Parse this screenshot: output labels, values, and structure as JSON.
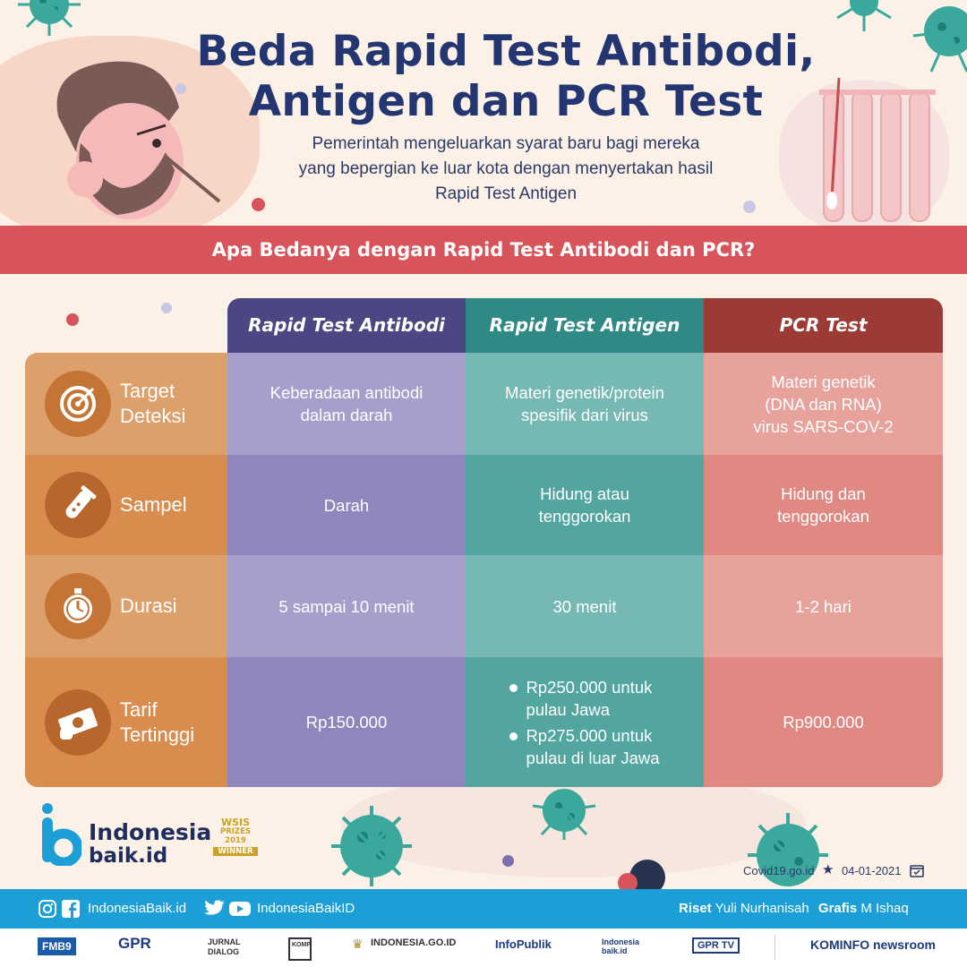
{
  "header": {
    "title_line1": "Beda Rapid Test Antibodi,",
    "title_line2": "Antigen dan PCR Test",
    "subtitle_line1": "Pemerintah mengeluarkan syarat baru bagi mereka",
    "subtitle_line2": "yang bepergian ke luar kota dengan menyertakan hasil",
    "subtitle_line3": "Rapid Test Antigen"
  },
  "banner": {
    "question": "Apa Bedanya dengan Rapid Test Antibodi dan PCR?"
  },
  "table": {
    "columns": [
      "Rapid Test Antibodi",
      "Rapid Test Antigen",
      "PCR Test"
    ],
    "rows": [
      {
        "label": "Target\nDeteksi",
        "icon": "target-icon",
        "antibodi": "Keberadaan antibodi\ndalam darah",
        "antigen": "Materi genetik/protein\nspesifik dari virus",
        "pcr": "Materi genetik\n(DNA dan RNA)\nvirus SARS-COV-2"
      },
      {
        "label": "Sampel",
        "icon": "test-tube-icon",
        "antibodi": "Darah",
        "antigen": "Hidung atau\ntenggorokan",
        "pcr": "Hidung dan\ntenggorokan"
      },
      {
        "label": "Durasi",
        "icon": "stopwatch-icon",
        "antibodi": "5 sampai 10 menit",
        "antigen": "30 menit",
        "pcr": "1-2 hari"
      },
      {
        "label": "Tarif\nTertinggi",
        "icon": "money-icon",
        "antibodi": "Rp150.000",
        "antigen_items": [
          "Rp250.000 untuk\npulau Jawa",
          "Rp275.000 untuk\npulau di luar Jawa"
        ],
        "pcr": "Rp900.000"
      }
    ]
  },
  "colors": {
    "antibodi_head": "#4b4783",
    "antigen_head": "#2f8a85",
    "pcr_head": "#9c3a35",
    "label_col": "#d88d4e",
    "banner": "#d7545b",
    "footer": "#1b9fd6"
  },
  "brand": {
    "logo_line1": "Indonesia",
    "logo_line2": "baik.id",
    "award_line1": "WSIS",
    "award_line2": "PRIZES",
    "award_line3": "2019",
    "award_line4": "WINNER"
  },
  "meta": {
    "source": "Covid19.go.id",
    "date": "04-01-2021"
  },
  "footer": {
    "social1": "IndonesiaBaik.id",
    "social2": "IndonesiaBaikID",
    "riset_label": "Riset",
    "riset_name": "Yuli Nurhanisah",
    "grafis_label": "Grafis",
    "grafis_name": "M Ishaq"
  },
  "partners": [
    "FMB9",
    "GPR",
    "JURNAL DIALOG",
    "KOMPAK",
    "INDONESIA.GO.ID",
    "InfoPublik",
    "Indonesia baik.id",
    "GPR TV",
    "KOMINFO newsroom"
  ]
}
